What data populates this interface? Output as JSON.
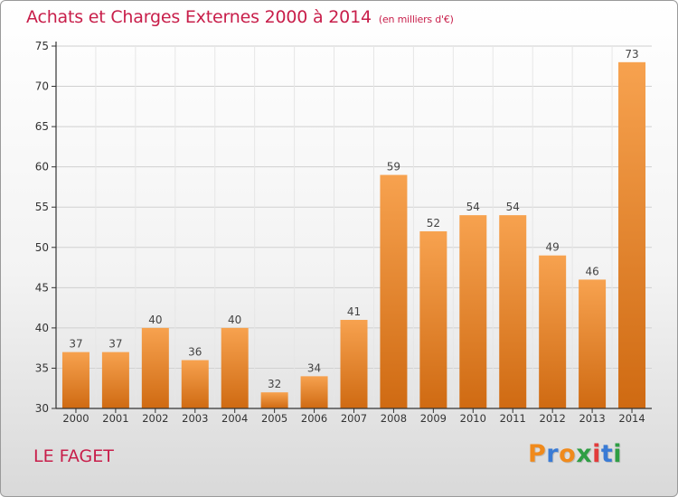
{
  "header": {
    "title": "Achats et Charges Externes 2000 à 2014",
    "unit": "(en milliers d'€)"
  },
  "footer": {
    "commune": "LE FAGET",
    "logo_text": "Proxiti",
    "logo_colors": [
      "#f08a1c",
      "#3a7bd5",
      "#f08a1c",
      "#2f9e44",
      "#e23b3b",
      "#3a7bd5",
      "#2f9e44"
    ]
  },
  "colors": {
    "bar_light": "#f7a24f",
    "bar_dark": "#cf6a12",
    "title": "#c81e4a",
    "axis": "#333333",
    "grid": "#d0d0d0"
  },
  "chart_data": {
    "type": "bar",
    "title": "Achats et Charges Externes 2000 à 2014",
    "subtitle": "(en milliers d'€)",
    "categories": [
      "2000",
      "2001",
      "2002",
      "2003",
      "2004",
      "2005",
      "2006",
      "2007",
      "2008",
      "2009",
      "2010",
      "2011",
      "2012",
      "2013",
      "2014"
    ],
    "values": [
      37,
      37,
      40,
      36,
      40,
      32,
      34,
      41,
      59,
      52,
      54,
      54,
      49,
      46,
      73
    ],
    "ylim": [
      30,
      75
    ],
    "yticks": [
      30,
      35,
      40,
      45,
      50,
      55,
      60,
      65,
      70,
      75
    ],
    "grid": true,
    "xlabel": "",
    "ylabel": ""
  }
}
